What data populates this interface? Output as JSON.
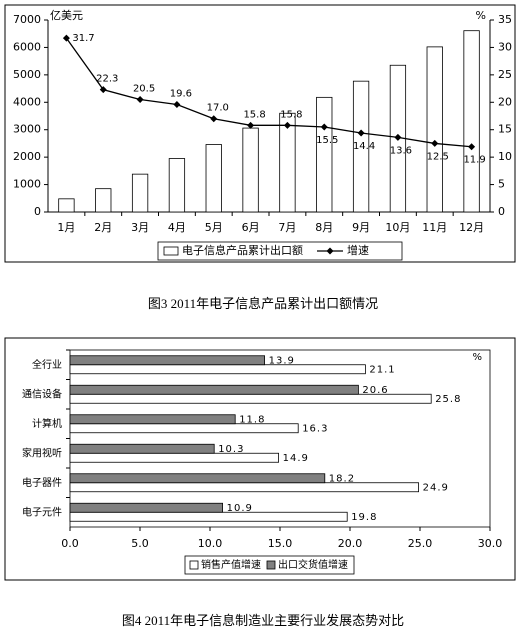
{
  "chart_data": [
    {
      "type": "bar",
      "caption": "图3 2011年电子信息产品累计出口额情况",
      "y_unit": "亿美元",
      "y2_unit": "%",
      "categories": [
        "1月",
        "2月",
        "3月",
        "4月",
        "5月",
        "6月",
        "7月",
        "8月",
        "9月",
        "10月",
        "11月",
        "12月"
      ],
      "series": [
        {
          "name": "电子信息产品累计出口额",
          "color": "#ffffff",
          "values": [
            480,
            850,
            1380,
            1950,
            2460,
            3060,
            3600,
            4180,
            4770,
            5350,
            6020,
            6610
          ]
        },
        {
          "name": "增速",
          "type": "line",
          "axis": "y2",
          "color": "#000000",
          "values": [
            31.7,
            22.3,
            20.5,
            19.6,
            17.0,
            15.8,
            15.8,
            15.5,
            14.4,
            13.6,
            12.5,
            11.9
          ],
          "value_labels": [
            "31.7",
            "22.3",
            "20.5",
            "19.6",
            "17.0",
            "15.8",
            "15.8",
            "15.5",
            "14.4",
            "13.6",
            "12.5",
            "11.9"
          ]
        }
      ],
      "ylim": [
        0,
        7000
      ],
      "yticks": [
        0,
        1000,
        2000,
        3000,
        4000,
        5000,
        6000,
        7000
      ],
      "y2lim": [
        0,
        35
      ],
      "y2ticks": [
        0,
        5,
        10,
        15,
        20,
        25,
        30,
        35
      ],
      "legend": "bottom"
    },
    {
      "type": "barh",
      "caption": "图4 2011年电子信息制造业主要行业发展态势对比",
      "x_unit": "%",
      "categories": [
        "全行业",
        "通信设备",
        "计算机",
        "家用视听",
        "电子器件",
        "电子元件"
      ],
      "series": [
        {
          "name": "销售产值增速",
          "color": "#ffffff",
          "values": [
            21.1,
            25.8,
            16.3,
            14.9,
            24.9,
            19.8
          ]
        },
        {
          "name": "出口交货值增速",
          "color": "#808080",
          "values": [
            13.9,
            20.6,
            11.8,
            10.3,
            18.2,
            10.9
          ]
        }
      ],
      "xlim": [
        0,
        30
      ],
      "xticks": [
        {
          "value": 0,
          "label": "0.0"
        },
        {
          "value": 5,
          "label": "5.0"
        },
        {
          "value": 10,
          "label": "10.0"
        },
        {
          "value": 15,
          "label": "15.0"
        },
        {
          "value": 20,
          "label": "20.0"
        },
        {
          "value": 25,
          "label": "25.0"
        },
        {
          "value": 30,
          "label": "30.0"
        }
      ],
      "legend": "bottom"
    }
  ]
}
